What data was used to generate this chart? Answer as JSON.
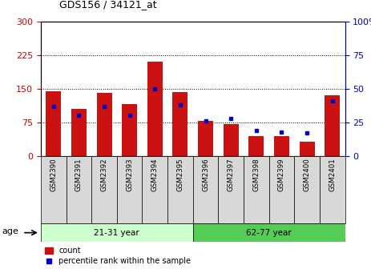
{
  "title": "GDS156 / 34121_at",
  "samples": [
    "GSM2390",
    "GSM2391",
    "GSM2392",
    "GSM2393",
    "GSM2394",
    "GSM2395",
    "GSM2396",
    "GSM2397",
    "GSM2398",
    "GSM2399",
    "GSM2400",
    "GSM2401"
  ],
  "counts": [
    145,
    105,
    140,
    115,
    210,
    143,
    78,
    72,
    45,
    45,
    32,
    135
  ],
  "percentiles": [
    37,
    30,
    37,
    30,
    50,
    38,
    26,
    28,
    19,
    18,
    17,
    41
  ],
  "groups": [
    {
      "label": "21-31 year",
      "start": 0,
      "end": 5
    },
    {
      "label": "62-77 year",
      "start": 6,
      "end": 11
    }
  ],
  "group_color_light": "#ccffcc",
  "group_color_dark": "#55cc55",
  "bar_color": "#cc1111",
  "dot_color": "#0000cc",
  "ylim_left": [
    0,
    300
  ],
  "ylim_right": [
    0,
    100
  ],
  "yticks_left": [
    0,
    75,
    150,
    225,
    300
  ],
  "yticks_right": [
    0,
    25,
    50,
    75,
    100
  ],
  "left_tick_color": "#cc0000",
  "right_tick_color": "#0000cc",
  "background_color": "#ffffff",
  "age_label": "age",
  "legend_count": "count",
  "legend_percentile": "percentile rank within the sample"
}
